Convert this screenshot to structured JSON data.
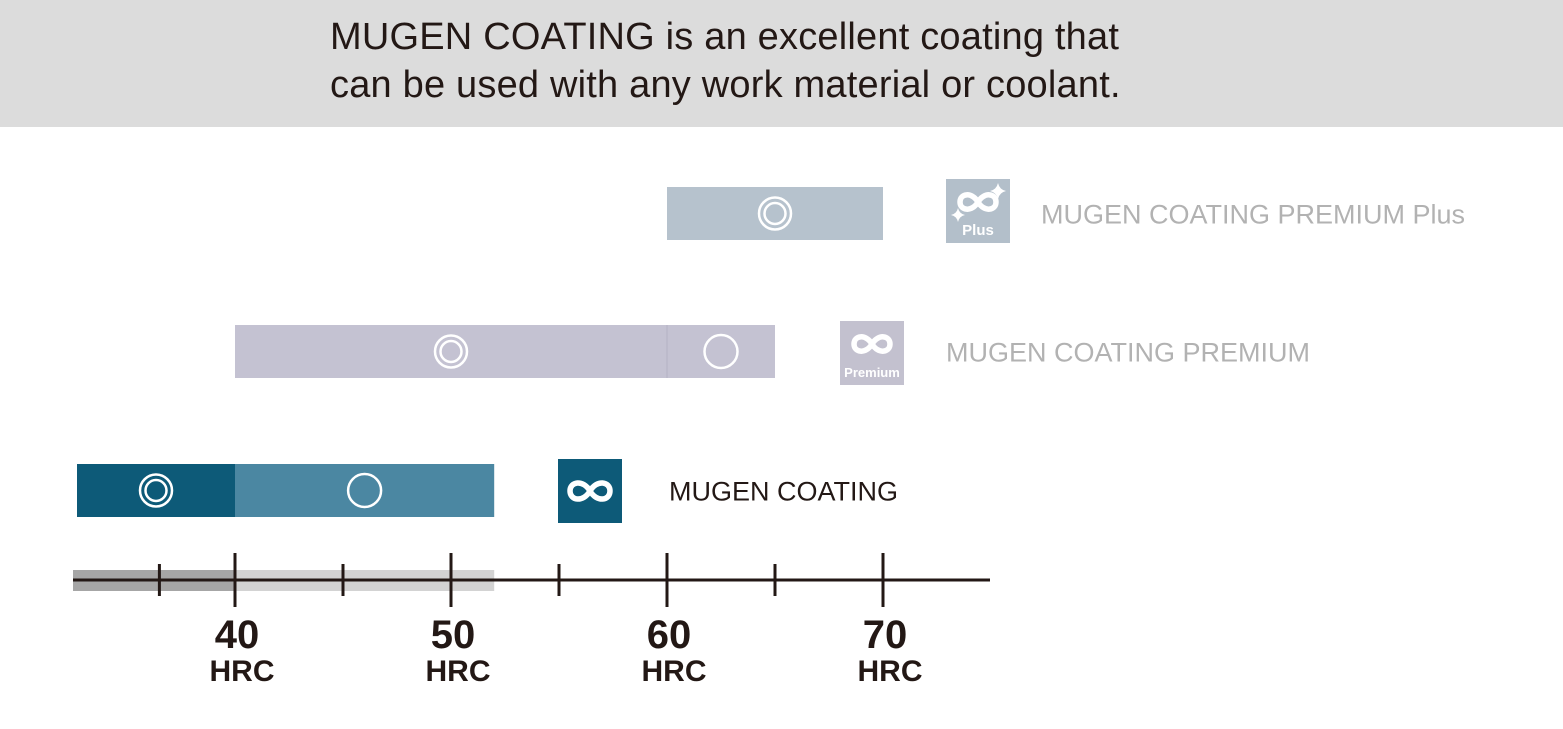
{
  "header": {
    "line1": "MUGEN COATING is an excellent coating that",
    "line2": "can be used with any work material or coolant."
  },
  "colors": {
    "header_bg": "#dcdcdc",
    "premium_plus_bar": "#b6c2cd",
    "premium_bar": "#c4c2d2",
    "mugen_dark": "#0d5a78",
    "mugen_light": "#4b87a2",
    "label_gray": "#b2b2b2",
    "label_dark": "#231815"
  },
  "chart_data": {
    "type": "bar",
    "orientation": "horizontal",
    "axis": {
      "unit": "HRC",
      "ticks": [
        40,
        50,
        60,
        70
      ],
      "minor_ticks": [
        36.5,
        45,
        55,
        65
      ],
      "range": [
        32.5,
        75
      ],
      "shaded_band": [
        32.5,
        52
      ]
    },
    "legend_marks": {
      "excellent": "double-circle",
      "good": "circle"
    },
    "series": [
      {
        "name": "MUGEN COATING PREMIUM Plus",
        "badge_sub": "Plus",
        "segments": [
          {
            "from": 60,
            "to": 70,
            "mark": "double-circle"
          }
        ]
      },
      {
        "name": "MUGEN COATING PREMIUM",
        "badge_sub": "Premium",
        "segments": [
          {
            "from": 40,
            "to": 60,
            "mark": "double-circle"
          },
          {
            "from": 60,
            "to": 65,
            "mark": "circle"
          }
        ]
      },
      {
        "name": "MUGEN COATING",
        "badge_sub": "",
        "segments": [
          {
            "from": 32.5,
            "to": 40,
            "mark": "double-circle"
          },
          {
            "from": 40,
            "to": 52,
            "mark": "circle"
          }
        ]
      }
    ]
  }
}
